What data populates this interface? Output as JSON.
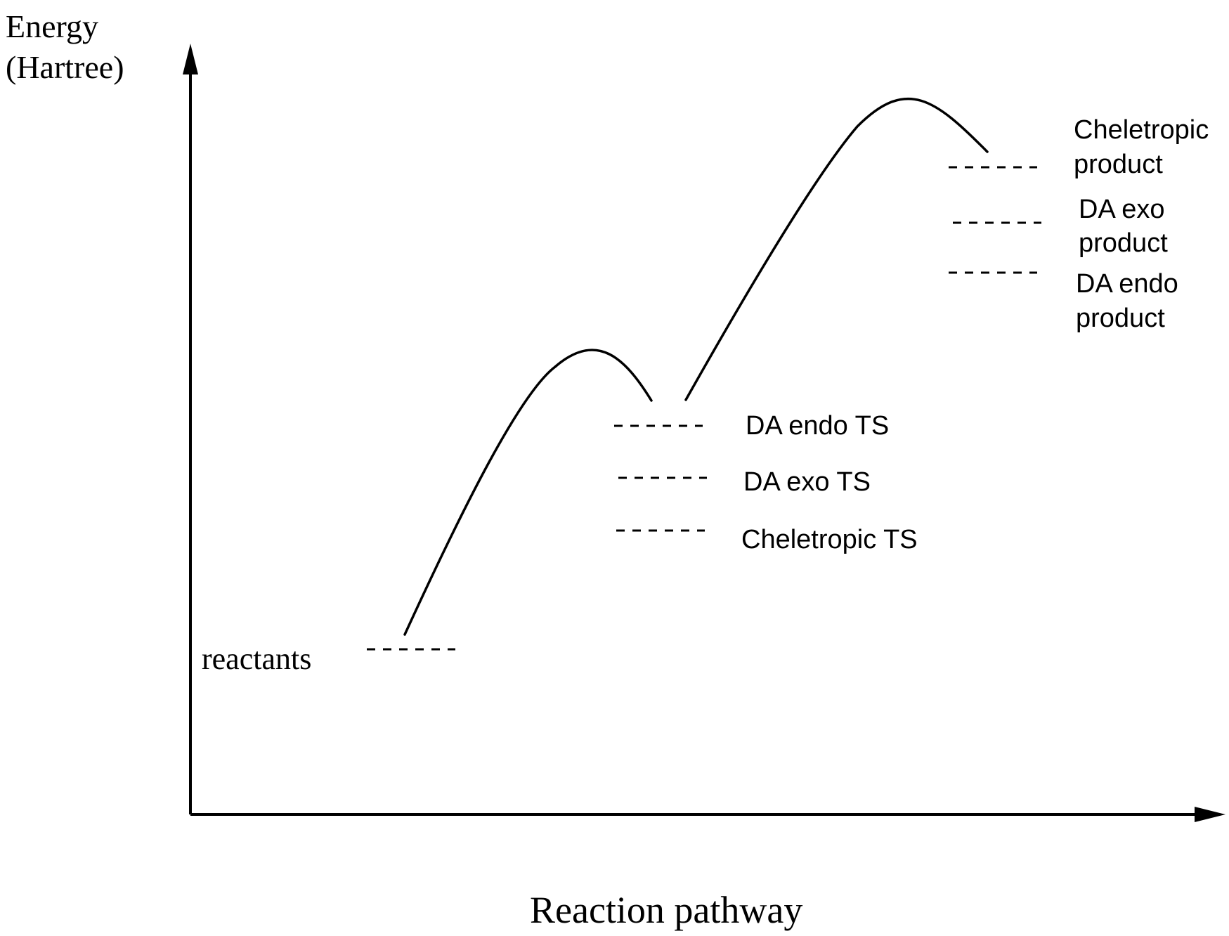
{
  "diagram": {
    "y_axis_title_line1": "Energy",
    "y_axis_title_line2": "(Hartree)",
    "x_axis_title": "Reaction pathway",
    "reactants_label": "reactants",
    "ts_labels": {
      "endo": "DA endo TS",
      "exo": "DA exo TS",
      "cheletropic": "Cheletropic TS"
    },
    "product_labels": {
      "cheletropic_line1": "Cheletropic",
      "cheletropic_line2": "product",
      "exo_line1": "DA exo",
      "exo_line2": "product",
      "endo_line1": "DA endo",
      "endo_line2": "product"
    }
  }
}
